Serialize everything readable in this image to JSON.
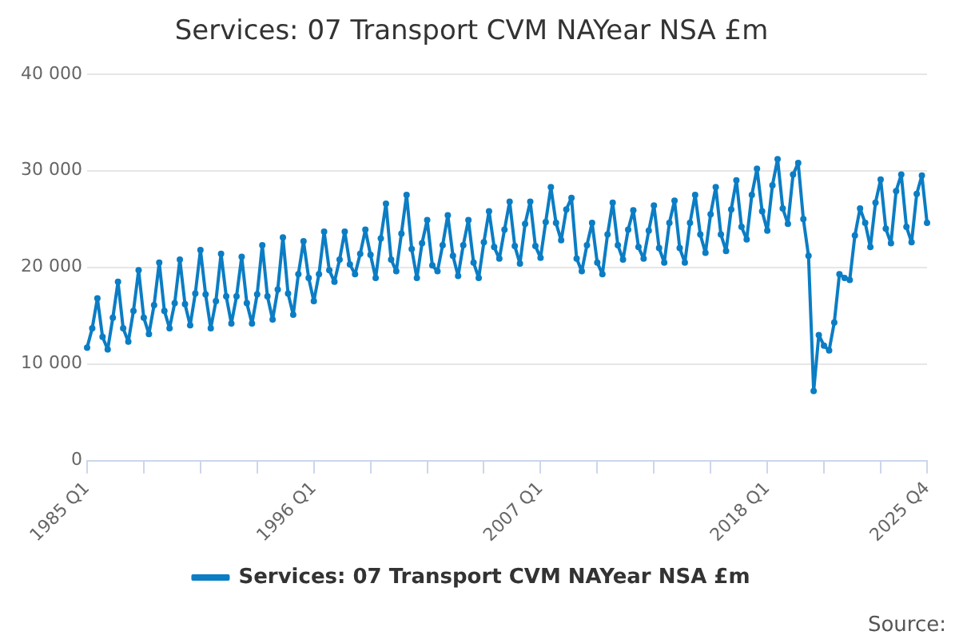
{
  "chart_data": {
    "type": "line",
    "title": "Services: 07 Transport CVM NAYear NSA £m",
    "categories": [
      "1985 Q1",
      null,
      null,
      null,
      null,
      null,
      null,
      null,
      null,
      null,
      null,
      null,
      null,
      null,
      null,
      null,
      null,
      null,
      null,
      null,
      null,
      null,
      null,
      null,
      null,
      null,
      null,
      null,
      null,
      null,
      null,
      null,
      null,
      null,
      null,
      null,
      null,
      null,
      null,
      null,
      null,
      null,
      null,
      null,
      "1996 Q1",
      null,
      null,
      null,
      null,
      null,
      null,
      null,
      null,
      null,
      null,
      null,
      null,
      null,
      null,
      null,
      null,
      null,
      null,
      null,
      null,
      null,
      null,
      null,
      null,
      null,
      null,
      null,
      null,
      null,
      null,
      null,
      null,
      null,
      null,
      null,
      null,
      null,
      null,
      null,
      null,
      null,
      null,
      null,
      "2007 Q1",
      null,
      null,
      null,
      null,
      null,
      null,
      null,
      null,
      null,
      null,
      null,
      null,
      null,
      null,
      null,
      null,
      null,
      null,
      null,
      null,
      null,
      null,
      null,
      null,
      null,
      null,
      null,
      null,
      null,
      null,
      null,
      null,
      null,
      null,
      null,
      null,
      null,
      null,
      null,
      null,
      null,
      null,
      null,
      "2018 Q1",
      null,
      null,
      null,
      null,
      null,
      null,
      null,
      null,
      null,
      null,
      null,
      null,
      null,
      null,
      null,
      null,
      null,
      null,
      null,
      null,
      null,
      null,
      null,
      null,
      null,
      null,
      null,
      null,
      null,
      null,
      "2025 Q4"
    ],
    "series": [
      {
        "name": "Services: 07 Transport CVM NAYear NSA £m",
        "color": "#0b7dc4",
        "values": [
          11700,
          13700,
          16800,
          12800,
          11500,
          14800,
          18500,
          13700,
          12300,
          15500,
          19700,
          14800,
          13100,
          16100,
          20500,
          15500,
          13700,
          16300,
          20800,
          16200,
          14000,
          17300,
          21800,
          17200,
          13700,
          16500,
          21400,
          17000,
          14200,
          17000,
          21100,
          16300,
          14200,
          17200,
          22300,
          17000,
          14600,
          17700,
          23100,
          17300,
          15100,
          19300,
          22700,
          18900,
          16500,
          19300,
          23700,
          19700,
          18500,
          20800,
          23700,
          20300,
          19300,
          21400,
          23900,
          21300,
          18900,
          23000,
          26600,
          20800,
          19600,
          23500,
          27500,
          21900,
          18900,
          22500,
          24900,
          20200,
          19600,
          22300,
          25400,
          21200,
          19100,
          22300,
          24900,
          20500,
          18900,
          22600,
          25800,
          22100,
          20900,
          23900,
          26800,
          22200,
          20400,
          24500,
          26800,
          22200,
          21000,
          24700,
          28300,
          24600,
          22800,
          26000,
          27200,
          20900,
          19600,
          22300,
          24600,
          20500,
          19300,
          23400,
          26700,
          22300,
          20800,
          23900,
          25900,
          22100,
          20900,
          23800,
          26400,
          22000,
          20500,
          24600,
          26900,
          22000,
          20500,
          24600,
          27500,
          23400,
          21500,
          25500,
          28300,
          23400,
          21700,
          26000,
          29000,
          24200,
          22900,
          27500,
          30200,
          25800,
          23800,
          28500,
          31200,
          26100,
          24500,
          29600,
          30800,
          25000,
          21200,
          7200,
          13000,
          11900,
          11400,
          14300,
          19300,
          18900,
          18700,
          23300,
          26100,
          24600,
          22100,
          26700,
          29100,
          24000,
          22500,
          27900,
          29600,
          24200,
          22600,
          27600,
          29500,
          24600
        ]
      }
    ],
    "ylim": [
      0,
      40000
    ],
    "yticks": [
      {
        "value": 0,
        "label": "0"
      },
      {
        "value": 10000,
        "label": "10 000"
      },
      {
        "value": 20000,
        "label": "20 000"
      },
      {
        "value": 30000,
        "label": "30 000"
      },
      {
        "value": 40000,
        "label": "40 000"
      }
    ],
    "grid": "y",
    "legend": "bottom",
    "marker": "circle",
    "line_style": "solid",
    "annotations": [
      "Source:"
    ]
  }
}
